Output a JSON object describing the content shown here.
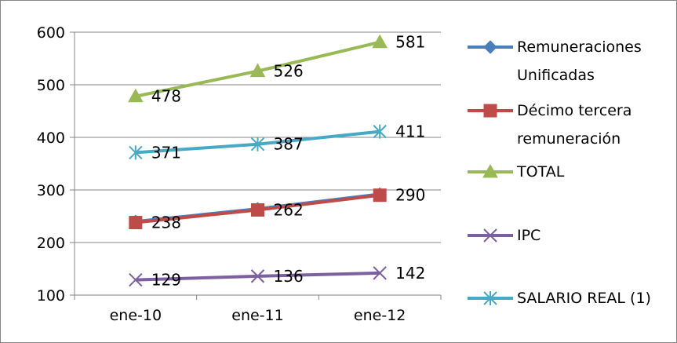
{
  "chart_data": {
    "type": "line",
    "categories": [
      "ene-10",
      "ene-11",
      "ene-12"
    ],
    "ylim": [
      100,
      600
    ],
    "yticks": [
      "100",
      "200",
      "300",
      "400",
      "500",
      "600"
    ],
    "grid": "horizontal",
    "legend_position": "right",
    "series": [
      {
        "name": "Remuneraciones Unificadas",
        "name_lines": [
          "Remuneraciones",
          "Unificadas"
        ],
        "values": [
          240,
          264,
          292
        ],
        "color": "#4A7EBB",
        "marker": "diamond",
        "labels": [
          "",
          "",
          ""
        ]
      },
      {
        "name": "Décimo tercera remuneración",
        "name_lines": [
          "Décimo tercera",
          "remuneración"
        ],
        "values": [
          238,
          262,
          290
        ],
        "color": "#BE4B48",
        "marker": "square",
        "labels": [
          "238",
          "262",
          "290"
        ]
      },
      {
        "name": "TOTAL",
        "name_lines": [
          "TOTAL"
        ],
        "values": [
          478,
          526,
          581
        ],
        "color": "#98B954",
        "marker": "triangle",
        "labels": [
          "478",
          "526",
          "581"
        ]
      },
      {
        "name": "IPC",
        "name_lines": [
          "IPC"
        ],
        "values": [
          129,
          136,
          142
        ],
        "color": "#7D60A0",
        "marker": "x",
        "labels": [
          "129",
          "136",
          "142"
        ]
      },
      {
        "name": "SALARIO REAL (1)",
        "name_lines": [
          "SALARIO REAL (1)"
        ],
        "values": [
          371,
          387,
          411
        ],
        "color": "#46AAC5",
        "marker": "star",
        "labels": [
          "371",
          "387",
          "411"
        ]
      }
    ]
  }
}
